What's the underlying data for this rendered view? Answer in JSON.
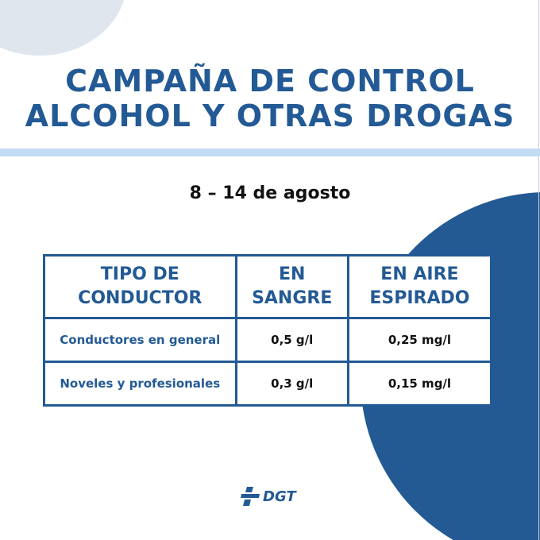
{
  "header": {
    "title_line1": "CAMPAÑA DE CONTROL",
    "title_line2": "ALCOHOL Y OTRAS DROGAS"
  },
  "dates": "8 – 14 de agosto",
  "table": {
    "headers": [
      {
        "line1": "TIPO DE",
        "line2": "CONDUCTOR"
      },
      {
        "line1": "EN",
        "line2": "SANGRE"
      },
      {
        "line1": "EN AIRE",
        "line2": "ESPIRADO"
      }
    ],
    "rows": [
      {
        "label": "Conductores en general",
        "blood": "0,5 g/l",
        "air": "0,25 mg/l"
      },
      {
        "label": "Noveles y profesionales",
        "blood": "0,3 g/l",
        "air": "0,15 mg/l"
      }
    ]
  },
  "footer": {
    "logo_text": "DGT"
  },
  "colors": {
    "primary": "#235a95",
    "circle": "#245a93",
    "divider": "#c2dcf3",
    "corner": "#dfe6ee"
  }
}
